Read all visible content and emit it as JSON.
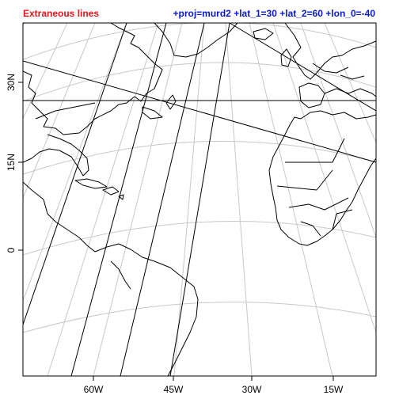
{
  "title_left": "Extraneous lines",
  "title_right": "+proj=murd2 +lat_1=30 +lat_2=60 +lon_0=-40",
  "colors": {
    "title_left": "#e8121b",
    "title_right": "#0a19c8",
    "graticule": "#c8c8c8",
    "coastline": "#000000"
  },
  "x_ticks": [
    "60W",
    "45W",
    "30W",
    "15W"
  ],
  "y_ticks": [
    "30N",
    "15N",
    "0"
  ],
  "map": {
    "projection": "murd2",
    "lat_1": 30,
    "lat_2": 60,
    "lon_0": -40,
    "graticule": true
  }
}
